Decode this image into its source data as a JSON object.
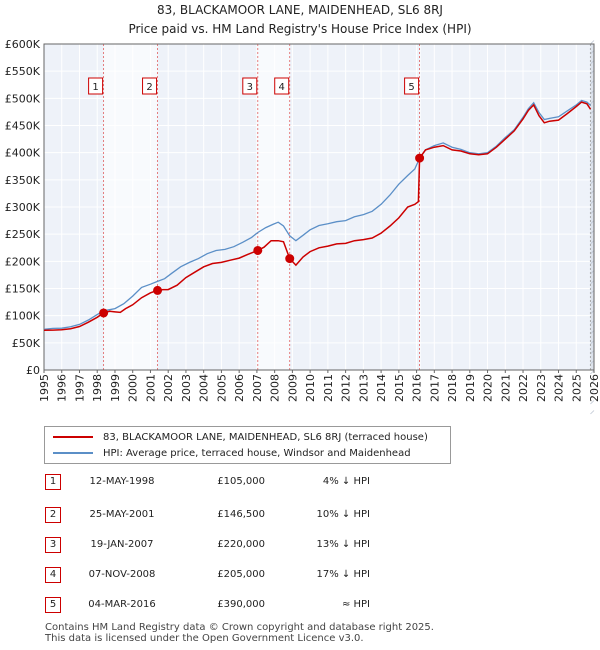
{
  "chart_data": {
    "type": "line",
    "title": "83, BLACKAMOOR LANE, MAIDENHEAD, SL6 8RJ",
    "subtitle": "Price paid vs. HM Land Registry's House Price Index (HPI)",
    "xlim": [
      1995,
      2026
    ],
    "ylim": [
      0,
      600000
    ],
    "y_ticks": [
      0,
      50000,
      100000,
      150000,
      200000,
      250000,
      300000,
      350000,
      400000,
      450000,
      500000,
      550000,
      600000
    ],
    "y_tick_labels": [
      "£0",
      "£50K",
      "£100K",
      "£150K",
      "£200K",
      "£250K",
      "£300K",
      "£350K",
      "£400K",
      "£450K",
      "£500K",
      "£550K",
      "£600K"
    ],
    "x_ticks": [
      1995,
      1996,
      1997,
      1998,
      1999,
      2000,
      2001,
      2002,
      2003,
      2004,
      2005,
      2006,
      2007,
      2008,
      2009,
      2010,
      2011,
      2012,
      2013,
      2014,
      2015,
      2016,
      2017,
      2018,
      2019,
      2020,
      2021,
      2022,
      2023,
      2024,
      2025,
      2026
    ],
    "grid": true,
    "series": [
      {
        "name": "83, BLACKAMOOR LANE, MAIDENHEAD, SL6 8RJ (terraced house)",
        "color": "#cc0000",
        "points": [
          [
            1995.0,
            73000
          ],
          [
            1995.5,
            73500
          ],
          [
            1996.0,
            74000
          ],
          [
            1996.5,
            76000
          ],
          [
            1997.0,
            80000
          ],
          [
            1997.5,
            88000
          ],
          [
            1998.0,
            97000
          ],
          [
            1998.36,
            105000
          ],
          [
            1998.7,
            108000
          ],
          [
            1999.0,
            107000
          ],
          [
            1999.3,
            106000
          ],
          [
            1999.6,
            113000
          ],
          [
            2000.0,
            120000
          ],
          [
            2000.5,
            133000
          ],
          [
            2001.0,
            142000
          ],
          [
            2001.4,
            146500
          ],
          [
            2001.7,
            148000
          ],
          [
            2002.0,
            148000
          ],
          [
            2002.5,
            156000
          ],
          [
            2003.0,
            170000
          ],
          [
            2003.5,
            180000
          ],
          [
            2004.0,
            190000
          ],
          [
            2004.5,
            196000
          ],
          [
            2005.0,
            198000
          ],
          [
            2005.5,
            202000
          ],
          [
            2006.0,
            206000
          ],
          [
            2006.5,
            213000
          ],
          [
            2007.05,
            220000
          ],
          [
            2007.4,
            226000
          ],
          [
            2007.8,
            238000
          ],
          [
            2008.2,
            238000
          ],
          [
            2008.5,
            236000
          ],
          [
            2008.85,
            205000
          ],
          [
            2009.2,
            193000
          ],
          [
            2009.6,
            208000
          ],
          [
            2010.0,
            218000
          ],
          [
            2010.5,
            225000
          ],
          [
            2011.0,
            228000
          ],
          [
            2011.5,
            232000
          ],
          [
            2012.0,
            233000
          ],
          [
            2012.5,
            238000
          ],
          [
            2013.0,
            240000
          ],
          [
            2013.5,
            243000
          ],
          [
            2014.0,
            252000
          ],
          [
            2014.5,
            265000
          ],
          [
            2015.0,
            280000
          ],
          [
            2015.5,
            300000
          ],
          [
            2015.9,
            305000
          ],
          [
            2016.1,
            310000
          ],
          [
            2016.17,
            390000
          ],
          [
            2016.5,
            405000
          ],
          [
            2017.0,
            410000
          ],
          [
            2017.5,
            413000
          ],
          [
            2018.0,
            405000
          ],
          [
            2018.5,
            403000
          ],
          [
            2019.0,
            398000
          ],
          [
            2019.5,
            396000
          ],
          [
            2020.0,
            398000
          ],
          [
            2020.5,
            410000
          ],
          [
            2021.0,
            425000
          ],
          [
            2021.5,
            440000
          ],
          [
            2022.0,
            462000
          ],
          [
            2022.3,
            478000
          ],
          [
            2022.6,
            488000
          ],
          [
            2022.9,
            468000
          ],
          [
            2023.2,
            455000
          ],
          [
            2023.5,
            458000
          ],
          [
            2024.0,
            460000
          ],
          [
            2024.5,
            472000
          ],
          [
            2025.0,
            485000
          ],
          [
            2025.3,
            493000
          ],
          [
            2025.6,
            490000
          ],
          [
            2025.8,
            480000
          ]
        ]
      },
      {
        "name": "HPI: Average price, terraced house, Windsor and Maidenhead",
        "color": "#5b8fc7",
        "points": [
          [
            1995.0,
            75000
          ],
          [
            1995.5,
            76500
          ],
          [
            1996.0,
            77000
          ],
          [
            1996.5,
            79500
          ],
          [
            1997.0,
            84000
          ],
          [
            1997.5,
            92000
          ],
          [
            1998.0,
            102000
          ],
          [
            1998.36,
            109000
          ],
          [
            1998.7,
            111000
          ],
          [
            1999.0,
            113000
          ],
          [
            1999.5,
            122000
          ],
          [
            2000.0,
            136000
          ],
          [
            2000.5,
            152000
          ],
          [
            2001.0,
            158000
          ],
          [
            2001.4,
            163000
          ],
          [
            2001.8,
            168000
          ],
          [
            2002.2,
            178000
          ],
          [
            2002.7,
            190000
          ],
          [
            2003.2,
            198000
          ],
          [
            2003.7,
            205000
          ],
          [
            2004.2,
            214000
          ],
          [
            2004.7,
            220000
          ],
          [
            2005.2,
            222000
          ],
          [
            2005.7,
            227000
          ],
          [
            2006.2,
            235000
          ],
          [
            2006.7,
            244000
          ],
          [
            2007.05,
            253000
          ],
          [
            2007.5,
            262000
          ],
          [
            2007.9,
            268000
          ],
          [
            2008.2,
            272000
          ],
          [
            2008.5,
            265000
          ],
          [
            2008.85,
            247000
          ],
          [
            2009.2,
            238000
          ],
          [
            2009.6,
            248000
          ],
          [
            2010.0,
            258000
          ],
          [
            2010.5,
            266000
          ],
          [
            2011.0,
            269000
          ],
          [
            2011.5,
            273000
          ],
          [
            2012.0,
            275000
          ],
          [
            2012.5,
            282000
          ],
          [
            2013.0,
            286000
          ],
          [
            2013.5,
            292000
          ],
          [
            2014.0,
            305000
          ],
          [
            2014.5,
            322000
          ],
          [
            2015.0,
            342000
          ],
          [
            2015.5,
            358000
          ],
          [
            2015.9,
            370000
          ],
          [
            2016.17,
            390000
          ],
          [
            2016.5,
            405000
          ],
          [
            2017.0,
            413000
          ],
          [
            2017.5,
            418000
          ],
          [
            2018.0,
            410000
          ],
          [
            2018.5,
            406000
          ],
          [
            2019.0,
            400000
          ],
          [
            2019.5,
            398000
          ],
          [
            2020.0,
            400000
          ],
          [
            2020.5,
            412000
          ],
          [
            2021.0,
            428000
          ],
          [
            2021.5,
            442000
          ],
          [
            2022.0,
            465000
          ],
          [
            2022.3,
            481000
          ],
          [
            2022.6,
            492000
          ],
          [
            2022.9,
            474000
          ],
          [
            2023.2,
            461000
          ],
          [
            2023.5,
            463000
          ],
          [
            2024.0,
            466000
          ],
          [
            2024.5,
            477000
          ],
          [
            2025.0,
            488000
          ],
          [
            2025.3,
            496000
          ],
          [
            2025.6,
            493000
          ],
          [
            2025.8,
            487000
          ]
        ]
      }
    ],
    "sales": [
      {
        "num": "1",
        "year": 1998.36,
        "price": 105000
      },
      {
        "num": "2",
        "year": 2001.4,
        "price": 146500
      },
      {
        "num": "3",
        "year": 2007.05,
        "price": 220000
      },
      {
        "num": "4",
        "year": 2008.85,
        "price": 205000
      },
      {
        "num": "5",
        "year": 2016.17,
        "price": 390000
      }
    ],
    "shaded_ranges": [
      [
        1998.36,
        2001.4
      ],
      [
        2007.05,
        2008.85
      ],
      [
        2016.17,
        2016.25
      ]
    ],
    "projection_start": 2025.8
  },
  "legend": {
    "property_label": "83, BLACKAMOOR LANE, MAIDENHEAD, SL6 8RJ (terraced house)",
    "hpi_label": "HPI: Average price, terraced house, Windsor and Maidenhead",
    "property_color": "#cc0000",
    "hpi_color": "#5b8fc7"
  },
  "sales_table": [
    {
      "num": "1",
      "date": "12-MAY-1998",
      "price": "£105,000",
      "hpi": "4% ↓ HPI"
    },
    {
      "num": "2",
      "date": "25-MAY-2001",
      "price": "£146,500",
      "hpi": "10% ↓ HPI"
    },
    {
      "num": "3",
      "date": "19-JAN-2007",
      "price": "£220,000",
      "hpi": "13% ↓ HPI"
    },
    {
      "num": "4",
      "date": "07-NOV-2008",
      "price": "£205,000",
      "hpi": "17% ↓ HPI"
    },
    {
      "num": "5",
      "date": "04-MAR-2016",
      "price": "£390,000",
      "hpi": "≈ HPI"
    }
  ],
  "footer": {
    "line1": "Contains HM Land Registry data © Crown copyright and database right 2025.",
    "line2": "This data is licensed under the Open Government Licence v3.0."
  }
}
